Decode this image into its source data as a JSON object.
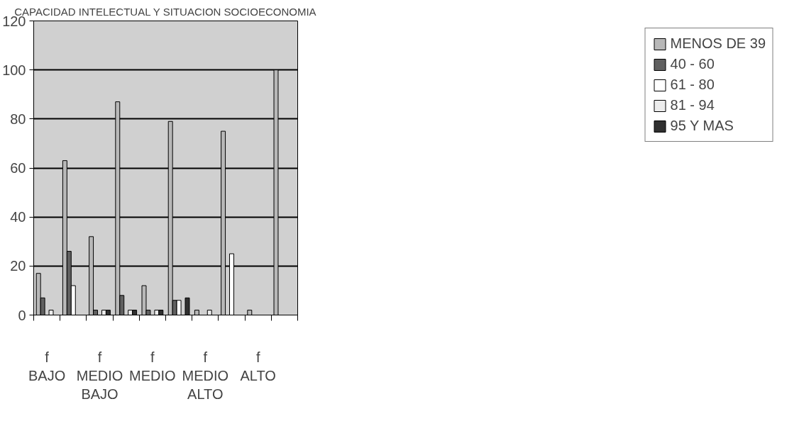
{
  "chart_data": {
    "type": "bar",
    "title": "CAPACIDAD INTELECTUAL Y SITUACION SOCIOECONOMIA",
    "categories": [
      "f BAJO",
      null,
      "f MEDIO BAJO",
      null,
      "f MEDIO",
      null,
      "f MEDIO ALTO",
      null,
      "f ALTO",
      null
    ],
    "series": [
      {
        "name": "MENOS DE 39",
        "color": "#b8b8b8",
        "values": [
          17,
          63,
          32,
          87,
          12,
          79,
          2,
          75,
          2,
          100
        ]
      },
      {
        "name": "40 - 60",
        "color": "#606060",
        "values": [
          7,
          26,
          2,
          8,
          2,
          6,
          null,
          null,
          null,
          null
        ]
      },
      {
        "name": "61 - 80",
        "color": "#ffffff",
        "values": [
          null,
          12,
          null,
          null,
          null,
          6,
          null,
          25,
          null,
          null
        ]
      },
      {
        "name": "81 - 94",
        "color": "#ececec",
        "values": [
          2,
          null,
          2,
          2,
          2,
          null,
          2,
          null,
          null,
          null
        ]
      },
      {
        "name": "95 Y MAS",
        "color": "#303030",
        "values": [
          null,
          null,
          2,
          2,
          2,
          7,
          null,
          null,
          null,
          null
        ]
      }
    ],
    "ylim": [
      0,
      120
    ],
    "yticks": [
      0,
      20,
      40,
      60,
      80,
      100,
      120
    ],
    "grid": "y",
    "legend": "right"
  }
}
